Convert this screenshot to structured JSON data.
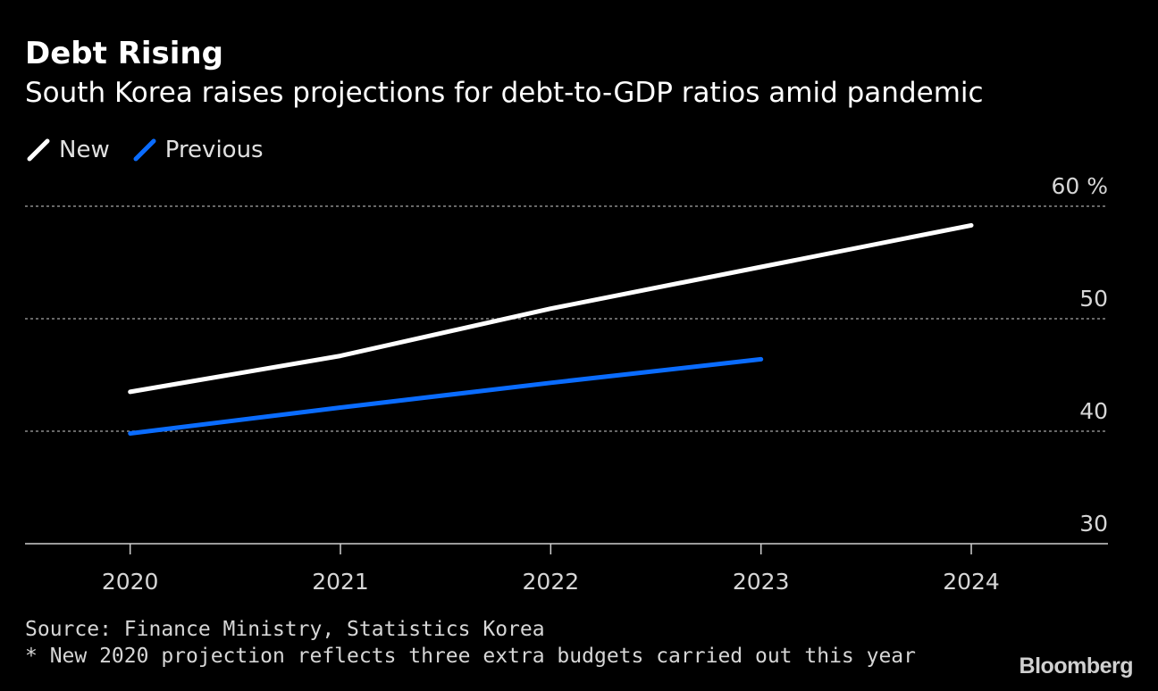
{
  "header": {
    "title": "Debt Rising",
    "subtitle": "South Korea raises projections for debt-to-GDP ratios amid pandemic"
  },
  "footer": {
    "source": "Source: Finance Ministry, Statistics Korea",
    "note": "* New 2020 projection reflects three extra budgets carried out this year",
    "brand": "Bloomberg"
  },
  "chart_data": {
    "type": "line",
    "title": "Debt Rising",
    "subtitle": "South Korea raises projections for debt-to-GDP ratios amid pandemic",
    "x": [
      2020,
      2021,
      2022,
      2023,
      2024
    ],
    "x_tick_labels": [
      "2020",
      "2021",
      "2022",
      "2023",
      "2024"
    ],
    "xlim": [
      2019.5,
      2024.65
    ],
    "ylim": [
      30,
      60
    ],
    "y_ticks": [
      30,
      40,
      50,
      60
    ],
    "y_tick_labels": [
      "30",
      "40",
      "50",
      "60 %"
    ],
    "y_unit": "%",
    "grid": true,
    "legend": "top-left",
    "series": [
      {
        "name": "New",
        "color": "#ffffff",
        "x": [
          2020,
          2021,
          2022,
          2023,
          2024
        ],
        "values": [
          43.5,
          46.7,
          50.9,
          54.6,
          58.3
        ]
      },
      {
        "name": "Previous",
        "color": "#0a6cff",
        "x": [
          2020,
          2021,
          2022,
          2023
        ],
        "values": [
          39.8,
          42.1,
          44.3,
          46.4
        ]
      }
    ]
  }
}
